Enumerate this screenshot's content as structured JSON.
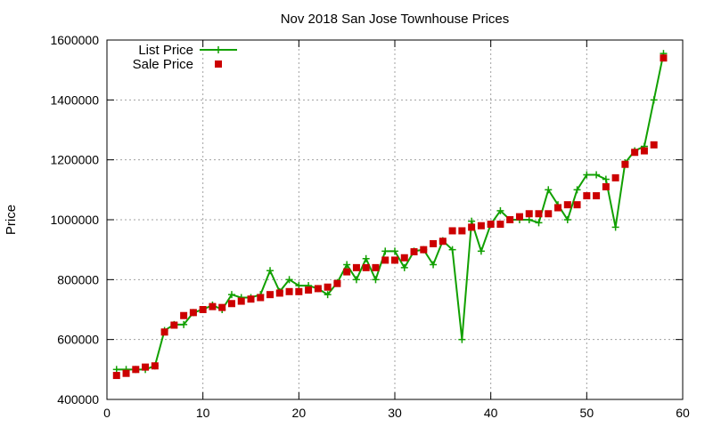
{
  "chart_data": {
    "type": "line",
    "title": "Nov 2018 San Jose Townhouse Prices",
    "xlabel": "",
    "ylabel": "Price",
    "xlim": [
      0,
      60
    ],
    "ylim": [
      400000,
      1600000
    ],
    "xticks": [
      "0",
      "10",
      "20",
      "30",
      "40",
      "50",
      "60"
    ],
    "yticks": [
      "400000",
      "600000",
      "800000",
      "1000000",
      "1200000",
      "1400000",
      "1600000"
    ],
    "grid": true,
    "legend_position": "top-left",
    "series": [
      {
        "name": "List Price",
        "style": "line-with-plus-markers",
        "color": "#11a000",
        "x": [
          1,
          2,
          3,
          4,
          5,
          6,
          7,
          8,
          9,
          10,
          11,
          12,
          13,
          14,
          15,
          16,
          17,
          18,
          19,
          20,
          21,
          22,
          23,
          24,
          25,
          26,
          27,
          28,
          29,
          30,
          31,
          32,
          33,
          34,
          35,
          36,
          37,
          38,
          39,
          40,
          41,
          42,
          43,
          44,
          45,
          46,
          47,
          48,
          49,
          50,
          51,
          52,
          53,
          54,
          55,
          56,
          57,
          58
        ],
        "y": [
          500000,
          500000,
          500000,
          500000,
          512000,
          630000,
          650000,
          650000,
          690000,
          700000,
          715000,
          700000,
          750000,
          740000,
          740000,
          750000,
          830000,
          760000,
          800000,
          780000,
          780000,
          770000,
          750000,
          790000,
          850000,
          800000,
          870000,
          800000,
          895000,
          895000,
          840000,
          895000,
          900000,
          850000,
          930000,
          900000,
          600000,
          995000,
          895000,
          985000,
          1030000,
          1000000,
          1000000,
          1000000,
          990000,
          1100000,
          1050000,
          1000000,
          1100000,
          1150000,
          1150000,
          1135000,
          975000,
          1190000,
          1230000,
          1245000,
          1400000,
          1555000
        ]
      },
      {
        "name": "Sale Price",
        "style": "square-markers",
        "color": "#cc0000",
        "x": [
          1,
          2,
          3,
          4,
          5,
          6,
          7,
          8,
          9,
          10,
          11,
          12,
          13,
          14,
          15,
          16,
          17,
          18,
          19,
          20,
          21,
          22,
          23,
          24,
          25,
          26,
          27,
          28,
          29,
          30,
          31,
          32,
          33,
          34,
          35,
          36,
          37,
          38,
          39,
          40,
          41,
          42,
          43,
          44,
          45,
          46,
          47,
          48,
          49,
          50,
          51,
          52,
          53,
          54,
          55,
          56,
          57,
          58
        ],
        "y": [
          480000,
          487000,
          500000,
          508000,
          512000,
          625000,
          648000,
          680000,
          690000,
          700000,
          710000,
          707000,
          720000,
          728000,
          735000,
          740000,
          750000,
          755000,
          760000,
          760000,
          765000,
          770000,
          775000,
          787000,
          826000,
          840000,
          840000,
          840000,
          865000,
          865000,
          873000,
          893000,
          900000,
          920000,
          928000,
          963000,
          963000,
          975000,
          980000,
          985000,
          985000,
          1000000,
          1010000,
          1020000,
          1020000,
          1020000,
          1040000,
          1050000,
          1050000,
          1080000,
          1080000,
          1110000,
          1140000,
          1185000,
          1225000,
          1230000,
          1250000,
          1540000
        ]
      }
    ]
  }
}
